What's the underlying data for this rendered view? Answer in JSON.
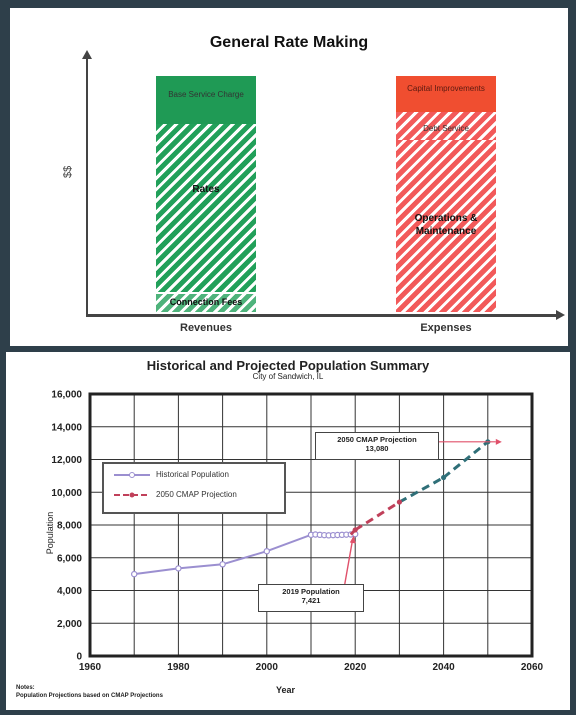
{
  "top_chart": {
    "title": "General Rate Making",
    "y_label": "$$",
    "bars": [
      {
        "name": "Revenues",
        "segments": [
          {
            "label": "Base Service Charge",
            "value": 16
          },
          {
            "label": "Rates",
            "value": 74
          },
          {
            "label": "Connection Fees",
            "value": 5
          }
        ]
      },
      {
        "name": "Expenses",
        "segments": [
          {
            "label": "Capital Improvements",
            "value": 13
          },
          {
            "label": "Debt Service",
            "value": 10
          },
          {
            "label": "Operations & Maintenance",
            "value": 72
          }
        ]
      }
    ]
  },
  "chart_data": {
    "type": "line",
    "title": "Historical and Projected Population Summary",
    "subtitle": "City of Sandwich, IL",
    "xlabel": "Year",
    "ylabel": "Population",
    "xlim": [
      1960,
      2060
    ],
    "ylim": [
      0,
      16000
    ],
    "x_ticks": [
      1960,
      1980,
      2000,
      2020,
      2040,
      2060
    ],
    "y_ticks": [
      0,
      2000,
      4000,
      6000,
      8000,
      10000,
      12000,
      14000,
      16000
    ],
    "y_tick_labels": [
      "0",
      "2,000",
      "4,000",
      "6,000",
      "8,000",
      "10,000",
      "12,000",
      "14,000",
      "16,000"
    ],
    "grid": true,
    "legend_position": "left",
    "series": [
      {
        "name": "Historical Population",
        "color": "#9b8fd0",
        "style": "solid",
        "x": [
          1970,
          1980,
          1990,
          2000,
          2010,
          2011,
          2012,
          2013,
          2014,
          2015,
          2016,
          2017,
          2018,
          2019,
          2020
        ],
        "y": [
          5000,
          5350,
          5600,
          6400,
          7400,
          7420,
          7400,
          7380,
          7370,
          7380,
          7390,
          7400,
          7410,
          7421,
          7440
        ]
      },
      {
        "name": "2050 CMAP Projection",
        "color": "#c0405a",
        "color2": "#2f6f78",
        "style": "dashed",
        "x": [
          2019,
          2020,
          2030,
          2040,
          2050
        ],
        "y": [
          7421,
          7700,
          9400,
          10900,
          13080
        ]
      }
    ],
    "annotations": [
      {
        "text": "2050 CMAP Projection",
        "text2": "13,080",
        "x": 2050,
        "y": 13080
      },
      {
        "text": "2019 Population",
        "text2": "7,421",
        "x": 2019,
        "y": 7421
      }
    ],
    "notes": [
      "Notes:",
      "Population Projections based on CMAP Projections"
    ]
  }
}
